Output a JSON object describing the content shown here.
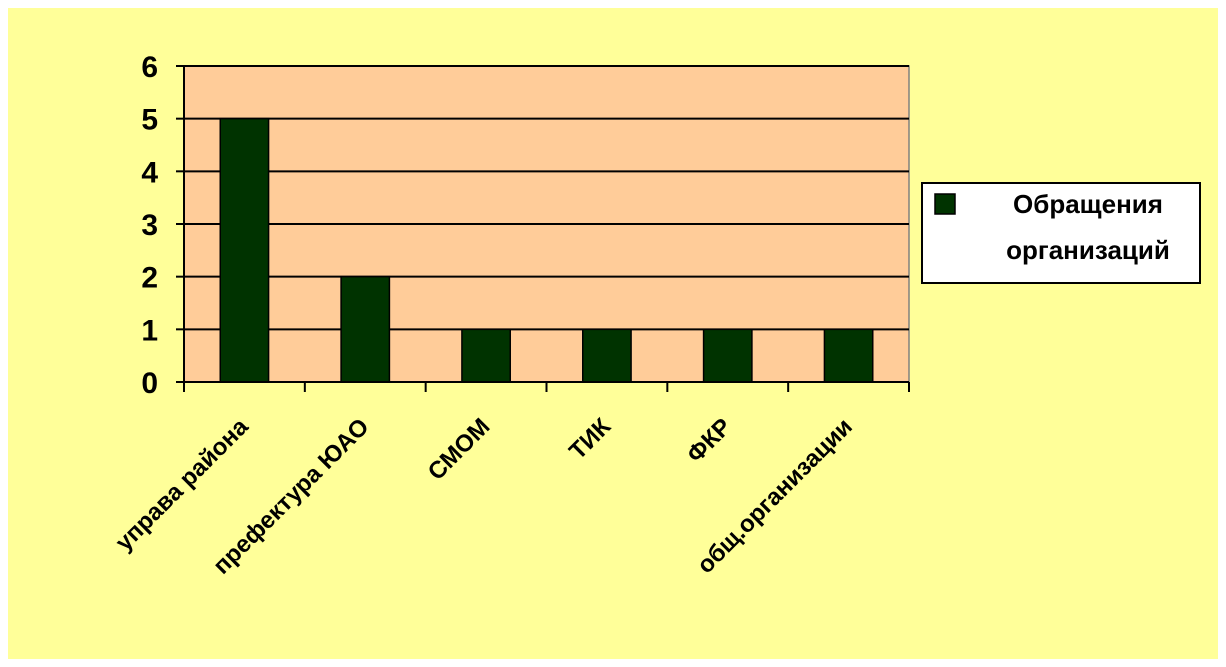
{
  "colors": {
    "outer_background": "#ffff99",
    "plot_background": "#ffcc99",
    "bar_fill": "#003300",
    "axis": "#000000"
  },
  "chart_data": {
    "type": "bar",
    "categories": [
      "управа района",
      "префектура ЮАО",
      "СМОМ",
      "ТИК",
      "ФКР",
      "общ.организации"
    ],
    "series": [
      {
        "name": "Обращения организаций",
        "values": [
          5,
          2,
          1,
          1,
          1,
          1
        ]
      }
    ],
    "ylim": [
      0,
      6
    ],
    "yticks": [
      "0",
      "1",
      "2",
      "3",
      "4",
      "5",
      "6"
    ],
    "grid": true,
    "legend_position": "right",
    "legend_lines": [
      "Обращения",
      "организаций"
    ]
  }
}
